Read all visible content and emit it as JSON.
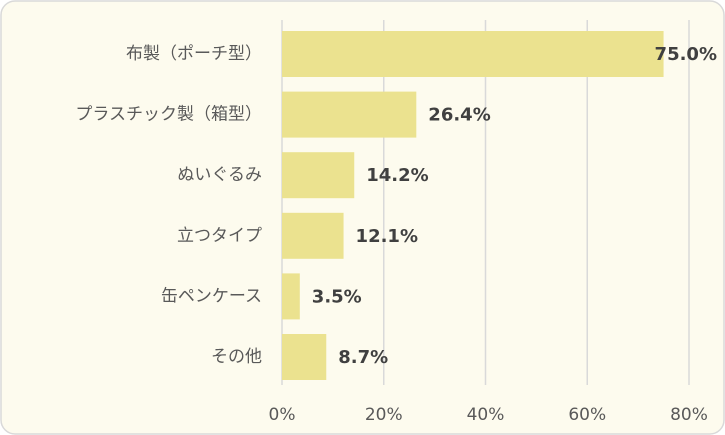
{
  "chart_data": {
    "type": "bar",
    "orientation": "horizontal",
    "categories": [
      "布製（ポーチ型）",
      "プラスチック製（箱型）",
      "ぬいぐるみ",
      "立つタイプ",
      "缶ペンケース",
      "その他"
    ],
    "values": [
      75.0,
      26.4,
      14.2,
      12.1,
      3.5,
      8.7
    ],
    "value_labels": [
      "75.0%",
      "26.4%",
      "14.2%",
      "12.1%",
      "3.5%",
      "8.7%"
    ],
    "color": "#ebe28f",
    "xlim": [
      0,
      80
    ],
    "xticks": [
      {
        "value": 0,
        "label": "0%"
      },
      {
        "value": 20,
        "label": "20%"
      },
      {
        "value": 40,
        "label": "40%"
      },
      {
        "value": 60,
        "label": "60%"
      },
      {
        "value": 80,
        "label": "80%"
      }
    ],
    "grid": true
  }
}
